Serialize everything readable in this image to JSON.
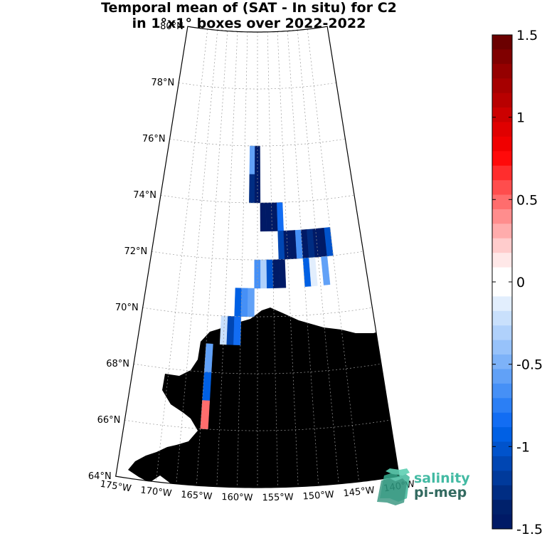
{
  "title_line1": "Temporal mean of (SAT - In situ) for C2",
  "title_line2": "in 1°x1° boxes over 2022-2022",
  "colorbar": {
    "min": -1.5,
    "max": 1.5,
    "tick_labels": [
      "1.5",
      "1",
      "0.5",
      "0",
      "-0.5",
      "-1",
      "-1.5"
    ],
    "tick_values": [
      1.5,
      1,
      0.5,
      0,
      -0.5,
      -1,
      -1.5
    ],
    "colors_top_to_bottom": [
      "#6b0000",
      "#800000",
      "#950000",
      "#a60000",
      "#b80000",
      "#cc0000",
      "#e00000",
      "#f00000",
      "#ff0a0a",
      "#ff2d2d",
      "#ff4d4d",
      "#ff6d6d",
      "#ff8d8d",
      "#ffacac",
      "#ffcccc",
      "#ffe8e8",
      "#ffffff",
      "#ffffff",
      "#e2eefd",
      "#c9e0fc",
      "#b0d1fb",
      "#97c2fa",
      "#7db2f8",
      "#61a1f7",
      "#4690f6",
      "#2b7ff5",
      "#126df3",
      "#0060e4",
      "#0053cc",
      "#0046b3",
      "#003a9b",
      "#002d83",
      "#00216b",
      "#001a66"
    ]
  },
  "map": {
    "lat_labels": [
      "80°N",
      "78°N",
      "76°N",
      "74°N",
      "72°N",
      "70°N",
      "68°N",
      "66°N",
      "64°N"
    ],
    "lon_labels": [
      "175°W",
      "170°W",
      "165°W",
      "160°W",
      "155°W",
      "150°W",
      "145°W",
      "140°W"
    ],
    "land_color": "#808080",
    "cells": [
      {
        "lat": 75.5,
        "lon": -158.5,
        "value": -0.6
      },
      {
        "lat": 75.5,
        "lon": -157.5,
        "value": -1.5
      },
      {
        "lat": 74.5,
        "lon": -158.5,
        "value": -1.3
      },
      {
        "lat": 74.5,
        "lon": -157.5,
        "value": -1.5
      },
      {
        "lat": 73.5,
        "lon": -156.5,
        "value": -1.5
      },
      {
        "lat": 73.5,
        "lon": -155.5,
        "value": -1.5
      },
      {
        "lat": 73.5,
        "lon": -154.5,
        "value": -1.5
      },
      {
        "lat": 73.5,
        "lon": -153.5,
        "value": -0.8
      },
      {
        "lat": 72.5,
        "lon": -153.5,
        "value": -1.1
      },
      {
        "lat": 72.5,
        "lon": -152.5,
        "value": -1.5
      },
      {
        "lat": 72.5,
        "lon": -151.5,
        "value": -1.5
      },
      {
        "lat": 72.5,
        "lon": -150.5,
        "value": -0.7
      },
      {
        "lat": 72.5,
        "lon": -149.5,
        "value": -1.5
      },
      {
        "lat": 72.5,
        "lon": -148.5,
        "value": -1.3
      },
      {
        "lat": 72.5,
        "lon": -147.5,
        "value": -1.5
      },
      {
        "lat": 72.5,
        "lon": -146.5,
        "value": -1.5
      },
      {
        "lat": 72.5,
        "lon": -145.5,
        "value": -1.0
      },
      {
        "lat": 71.5,
        "lon": -157.5,
        "value": -0.7
      },
      {
        "lat": 71.5,
        "lon": -156.5,
        "value": -0.3
      },
      {
        "lat": 71.5,
        "lon": -155.5,
        "value": -1.0
      },
      {
        "lat": 71.5,
        "lon": -154.5,
        "value": -1.5
      },
      {
        "lat": 71.5,
        "lon": -153.5,
        "value": -1.5
      },
      {
        "lat": 71.5,
        "lon": -149.5,
        "value": -0.9
      },
      {
        "lat": 71.5,
        "lon": -148.5,
        "value": -0.15
      },
      {
        "lat": 71.5,
        "lon": -146.5,
        "value": -0.55
      },
      {
        "lat": 70.5,
        "lon": -160.5,
        "value": -0.9
      },
      {
        "lat": 70.5,
        "lon": -159.5,
        "value": -0.7
      },
      {
        "lat": 70.5,
        "lon": -158.5,
        "value": -0.6
      },
      {
        "lat": 69.5,
        "lon": -162.5,
        "value": -0.2
      },
      {
        "lat": 69.5,
        "lon": -161.5,
        "value": -1.1
      },
      {
        "lat": 69.5,
        "lon": -160.5,
        "value": -0.8
      },
      {
        "lat": 68.5,
        "lon": -164.5,
        "value": -0.6
      },
      {
        "lat": 67.5,
        "lon": -164.5,
        "value": -0.9
      },
      {
        "lat": 66.5,
        "lon": -164.5,
        "value": 0.45
      }
    ]
  },
  "logo": {
    "line1": "salinity",
    "line2": "pi-mep"
  }
}
